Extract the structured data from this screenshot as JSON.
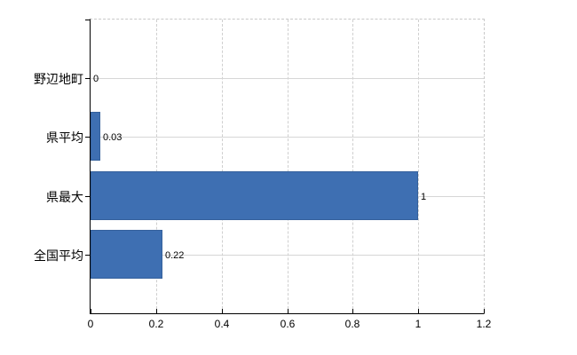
{
  "chart_data": {
    "type": "bar",
    "orientation": "horizontal",
    "title": "",
    "xlabel": "",
    "ylabel": "",
    "categories": [
      "野辺地町",
      "県平均",
      "県最大",
      "全国平均"
    ],
    "values": [
      0,
      0.03,
      1,
      0.22
    ],
    "value_labels": [
      "0",
      "0.03",
      "1",
      "0.22"
    ],
    "xlim": [
      0,
      1.2
    ],
    "xticks": [
      0,
      0.2,
      0.4,
      0.6,
      0.8,
      1,
      1.2
    ],
    "xtick_labels": [
      "0",
      "0.2",
      "0.4",
      "0.6",
      "0.8",
      "1",
      "1.2"
    ],
    "grid": true,
    "legend": false,
    "colors": {
      "bar_fill": "#3e6fb2",
      "bar_border": "#35619c",
      "horizontal_gridline": "#d6d6d6",
      "vertical_gridline": "#cfcfcf",
      "axis": "#000000",
      "text": "#000000",
      "background": "#ffffff"
    }
  }
}
